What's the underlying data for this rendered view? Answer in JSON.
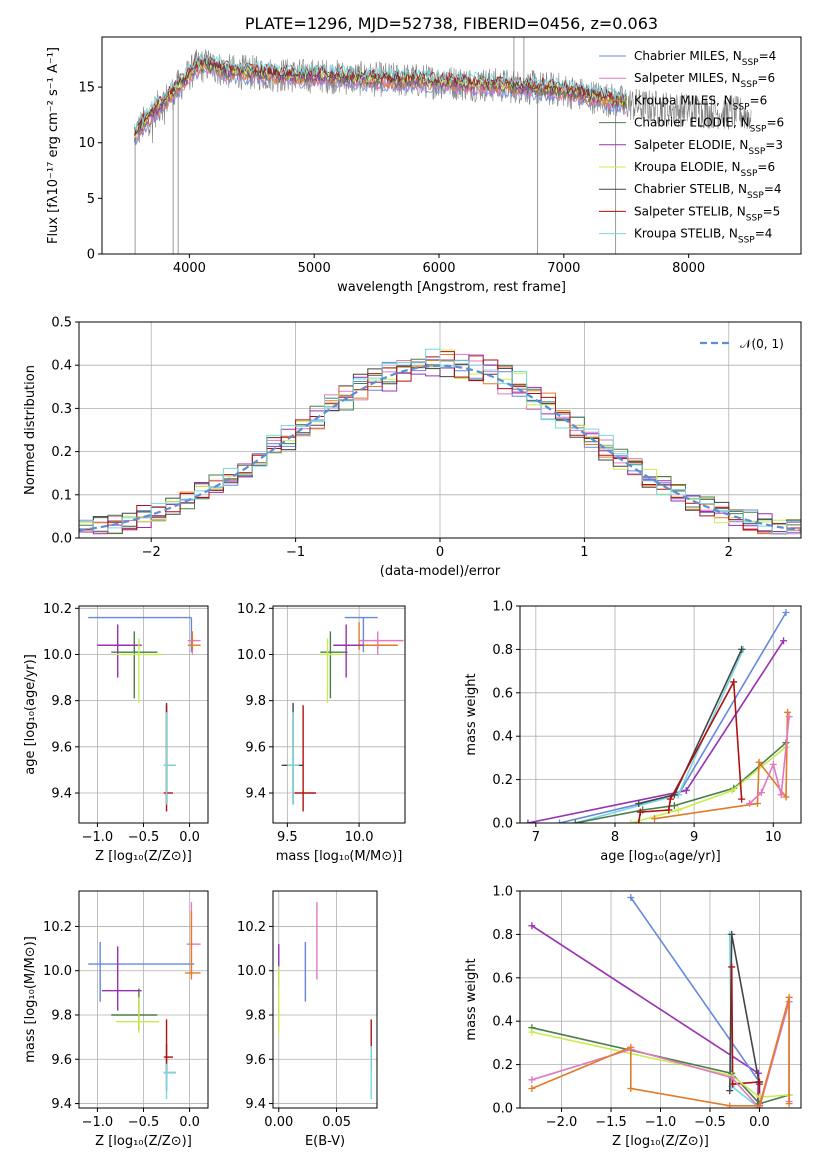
{
  "colors": {
    "Chabrier MILES": "#6688dd",
    "Salpeter MILES": "#e377c2",
    "Kroupa MILES": "#e07b28",
    "Chabrier ELODIE": "#4a7d4a",
    "Salpeter ELODIE": "#9930b0",
    "Kroupa ELODIE": "#c8ec50",
    "Chabrier STELIB": "#444444",
    "Salpeter STELIB": "#b01010",
    "Kroupa STELIB": "#78d8e0",
    "data": "#808080",
    "normal": "#5a8fd8"
  },
  "chart_data": [
    {
      "id": "spectrum",
      "type": "line",
      "title": "PLATE=1296, MJD=52738, FIBERID=0456, z=0.063",
      "xlabel": "wavelength [Angstrom, rest frame]",
      "ylabel": "Flux [fλ10⁻¹⁷ erg cm⁻² s⁻¹ A⁻¹]",
      "xlim": [
        3300,
        8900
      ],
      "ylim": [
        0,
        19.5
      ],
      "xticks": [
        4000,
        5000,
        6000,
        7000,
        8000
      ],
      "yticks": [
        0,
        5,
        10,
        15
      ],
      "grid": false,
      "legend_position": "upper right",
      "legend": [
        {
          "model": "Chabrier MILES",
          "text": "Chabrier MILES, N",
          "nssp": "=4"
        },
        {
          "model": "Salpeter MILES",
          "text": "Salpeter MILES, N",
          "nssp": "=6"
        },
        {
          "model": "Kroupa MILES",
          "text": "Kroupa MILES, N",
          "nssp": "=6"
        },
        {
          "model": "Chabrier ELODIE",
          "text": "Chabrier ELODIE, N",
          "nssp": "=6"
        },
        {
          "model": "Salpeter ELODIE",
          "text": "Salpeter ELODIE, N",
          "nssp": "=3"
        },
        {
          "model": "Kroupa ELODIE",
          "text": "Kroupa ELODIE, N",
          "nssp": "=6"
        },
        {
          "model": "Chabrier STELIB",
          "text": "Chabrier STELIB, N",
          "nssp": "=4"
        },
        {
          "model": "Salpeter STELIB",
          "text": "Salpeter STELIB, N",
          "nssp": "=5"
        },
        {
          "model": "Kroupa STELIB",
          "text": "Kroupa STELIB, N",
          "nssp": "=4"
        }
      ],
      "continuum": [
        [
          3550,
          10.5
        ],
        [
          3650,
          12
        ],
        [
          3750,
          13.2
        ],
        [
          3850,
          14.3
        ],
        [
          3950,
          15.5
        ],
        [
          4050,
          16.8
        ],
        [
          4150,
          17
        ],
        [
          4300,
          16.4
        ],
        [
          4500,
          16.3
        ],
        [
          4700,
          16.1
        ],
        [
          4900,
          16.0
        ],
        [
          5100,
          16.0
        ],
        [
          5300,
          15.8
        ],
        [
          5500,
          15.7
        ],
        [
          5800,
          15.6
        ],
        [
          6100,
          15.4
        ],
        [
          6400,
          15.2
        ],
        [
          6700,
          15.0
        ],
        [
          7000,
          14.7
        ],
        [
          7200,
          14.2
        ],
        [
          7400,
          13.8
        ],
        [
          7600,
          13.3
        ],
        [
          7900,
          13.0
        ],
        [
          8200,
          12.8
        ],
        [
          8500,
          12.5
        ]
      ],
      "model_range": [
        3560,
        7500
      ]
    },
    {
      "id": "residuals",
      "type": "histogram",
      "xlabel": "(data-model)/error",
      "ylabel": "Normed distribution",
      "xlim": [
        -2.5,
        2.5
      ],
      "ylim": [
        0,
        0.5
      ],
      "xticks": [
        -2,
        -1,
        0,
        1,
        2
      ],
      "xtick_labels": [
        "−2",
        "−1",
        "0",
        "1",
        "2"
      ],
      "yticks": [
        0,
        0.1,
        0.2,
        0.3,
        0.4,
        0.5
      ],
      "ytick_labels": [
        "0.0",
        "0.1",
        "0.2",
        "0.3",
        "0.4",
        "0.5"
      ],
      "grid": true,
      "bin_width": 0.1,
      "legend_label": "𝒩(0, 1)",
      "legend_position": "upper right"
    },
    {
      "id": "age-vs-Z",
      "type": "errorbar",
      "xlabel": "Z [log₁₀(Z/Z⊙)]",
      "ylabel": "age  [log₁₀(age/yr)]",
      "xlim": [
        -1.2,
        0.2
      ],
      "ylim": [
        9.27,
        10.21
      ],
      "xticks": [
        -1.0,
        -0.5,
        0.0
      ],
      "xtick_labels": [
        "−1.0",
        "−0.5",
        "0.0"
      ],
      "yticks": [
        9.4,
        9.6,
        9.8,
        10.0,
        10.2
      ],
      "ytick_labels": [
        "9.4",
        "9.6",
        "9.8",
        "10.0",
        "10.2"
      ],
      "grid": true,
      "points": [
        {
          "model": "Chabrier MILES",
          "x": 0.02,
          "y": 10.16,
          "xlo": -1.1,
          "xhi": 0.02,
          "ylo": 10.01,
          "yhi": 10.16
        },
        {
          "model": "Salpeter MILES",
          "x": 0.03,
          "y": 10.06,
          "xlo": -0.02,
          "xhi": 0.12,
          "ylo": 10.0,
          "yhi": 10.1
        },
        {
          "model": "Kroupa MILES",
          "x": 0.03,
          "y": 10.04,
          "xlo": -0.02,
          "xhi": 0.12,
          "ylo": 10.02,
          "yhi": 10.1
        },
        {
          "model": "Chabrier ELODIE",
          "x": -0.6,
          "y": 10.01,
          "xlo": -0.85,
          "xhi": -0.35,
          "ylo": 9.81,
          "yhi": 10.1
        },
        {
          "model": "Salpeter ELODIE",
          "x": -0.78,
          "y": 10.04,
          "xlo": -1.0,
          "xhi": -0.52,
          "ylo": 9.9,
          "yhi": 10.13
        },
        {
          "model": "Kroupa ELODIE",
          "x": -0.55,
          "y": 10.0,
          "xlo": -0.8,
          "xhi": -0.3,
          "ylo": 9.79,
          "yhi": 10.07
        },
        {
          "model": "Chabrier STELIB",
          "x": -0.25,
          "y": 9.52,
          "xlo": -0.28,
          "xhi": -0.15,
          "ylo": 9.35,
          "yhi": 9.79
        },
        {
          "model": "Salpeter STELIB",
          "x": -0.25,
          "y": 9.4,
          "xlo": -0.28,
          "xhi": -0.18,
          "ylo": 9.32,
          "yhi": 9.78
        },
        {
          "model": "Kroupa STELIB",
          "x": -0.25,
          "y": 9.52,
          "xlo": -0.28,
          "xhi": -0.15,
          "ylo": 9.35,
          "yhi": 9.75
        }
      ]
    },
    {
      "id": "age-vs-mass",
      "type": "errorbar",
      "xlabel": "mass [log₁₀(M/M⊙)]",
      "ylabel": "",
      "xlim": [
        9.4,
        10.32
      ],
      "ylim": [
        9.27,
        10.21
      ],
      "xticks": [
        9.5,
        10.0
      ],
      "xtick_labels": [
        "9.5",
        "10.0"
      ],
      "yticks": [
        9.4,
        9.6,
        9.8,
        10.0,
        10.2
      ],
      "ytick_labels": [
        "9.4",
        "9.6",
        "9.8",
        "10.0",
        "10.2"
      ],
      "grid": true,
      "points": [
        {
          "model": "Chabrier MILES",
          "x": 10.03,
          "y": 10.16,
          "xlo": 9.9,
          "xhi": 10.13,
          "ylo": 10.01,
          "yhi": 10.16
        },
        {
          "model": "Salpeter MILES",
          "x": 10.13,
          "y": 10.06,
          "xlo": 10.0,
          "xhi": 10.31,
          "ylo": 10.0,
          "yhi": 10.1
        },
        {
          "model": "Kroupa MILES",
          "x": 10.0,
          "y": 10.04,
          "xlo": 9.96,
          "xhi": 10.27,
          "ylo": 10.02,
          "yhi": 10.14
        },
        {
          "model": "Chabrier ELODIE",
          "x": 9.8,
          "y": 10.01,
          "xlo": 9.73,
          "xhi": 9.92,
          "ylo": 9.81,
          "yhi": 10.1
        },
        {
          "model": "Salpeter ELODIE",
          "x": 9.91,
          "y": 10.04,
          "xlo": 9.82,
          "xhi": 10.03,
          "ylo": 9.9,
          "yhi": 10.13
        },
        {
          "model": "Kroupa ELODIE",
          "x": 9.78,
          "y": 10.0,
          "xlo": 9.72,
          "xhi": 9.88,
          "ylo": 9.79,
          "yhi": 10.07
        },
        {
          "model": "Chabrier STELIB",
          "x": 9.54,
          "y": 9.52,
          "xlo": 9.46,
          "xhi": 9.61,
          "ylo": 9.35,
          "yhi": 9.79
        },
        {
          "model": "Salpeter STELIB",
          "x": 9.61,
          "y": 9.4,
          "xlo": 9.55,
          "xhi": 9.7,
          "ylo": 9.32,
          "yhi": 9.78
        },
        {
          "model": "Kroupa STELIB",
          "x": 9.54,
          "y": 9.52,
          "xlo": 9.5,
          "xhi": 9.58,
          "ylo": 9.35,
          "yhi": 9.75
        }
      ]
    },
    {
      "id": "mass-weight-vs-age",
      "type": "line",
      "xlabel": "age  [log₁₀(age/yr)]",
      "ylabel": "mass weight",
      "xlim": [
        6.8,
        10.35
      ],
      "ylim": [
        0,
        1.0
      ],
      "xticks": [
        7,
        8,
        9,
        10
      ],
      "xtick_labels": [
        "7",
        "8",
        "9",
        "10"
      ],
      "yticks": [
        0,
        0.2,
        0.4,
        0.6,
        0.8,
        1.0
      ],
      "ytick_labels": [
        "0.0",
        "0.2",
        "0.4",
        "0.6",
        "0.8",
        "1.0"
      ],
      "grid": true,
      "series": [
        {
          "model": "Salpeter ELODIE",
          "x": [
            6.9,
            8.9,
            10.13
          ],
          "y": [
            0.0,
            0.15,
            0.84
          ]
        },
        {
          "model": "Chabrier MILES",
          "x": [
            7.3,
            8.8,
            10.16
          ],
          "y": [
            0.0,
            0.13,
            0.97
          ]
        },
        {
          "model": "Kroupa STELIB",
          "x": [
            7.5,
            8.8,
            9.62
          ],
          "y": [
            0.0,
            0.13,
            0.8
          ]
        },
        {
          "model": "Chabrier STELIB",
          "x": [
            8.3,
            8.75,
            9.6
          ],
          "y": [
            0.09,
            0.13,
            0.8
          ]
        },
        {
          "model": "Chabrier ELODIE",
          "x": [
            7.5,
            8.35,
            8.75,
            9.5,
            10.16
          ],
          "y": [
            0.0,
            0.06,
            0.08,
            0.16,
            0.37
          ]
        },
        {
          "model": "Kroupa ELODIE",
          "x": [
            8.2,
            8.8,
            9.48,
            10.16
          ],
          "y": [
            0.0,
            0.06,
            0.15,
            0.35
          ]
        },
        {
          "model": "Salpeter STELIB",
          "x": [
            8.3,
            8.32,
            8.68,
            8.7,
            9.5,
            9.6
          ],
          "y": [
            0.0,
            0.05,
            0.06,
            0.11,
            0.65,
            0.11
          ]
        },
        {
          "model": "Kroupa MILES",
          "x": [
            8.5,
            9.8,
            9.82,
            10.16,
            10.18
          ],
          "y": [
            0.02,
            0.09,
            0.28,
            0.12,
            0.51
          ]
        },
        {
          "model": "Salpeter MILES",
          "x": [
            9.7,
            9.85,
            10.0,
            10.1,
            10.2
          ],
          "y": [
            0.09,
            0.14,
            0.27,
            0.13,
            0.49
          ]
        }
      ]
    },
    {
      "id": "mass-vs-Z",
      "type": "errorbar",
      "xlabel": "Z [log₁₀(Z/Z⊙)]",
      "ylabel": "mass [log₁₀(M/M⊙)]",
      "xlim": [
        -1.2,
        0.2
      ],
      "ylim": [
        9.38,
        10.36
      ],
      "xticks": [
        -1.0,
        -0.5,
        0.0
      ],
      "xtick_labels": [
        "−1.0",
        "−0.5",
        "0.0"
      ],
      "yticks": [
        9.4,
        9.6,
        9.8,
        10.0,
        10.2
      ],
      "ytick_labels": [
        "9.4",
        "9.6",
        "9.8",
        "10.0",
        "10.2"
      ],
      "grid": true,
      "points": [
        {
          "model": "Chabrier MILES",
          "x": -0.97,
          "y": 10.03,
          "xlo": -1.1,
          "xhi": 0.05,
          "ylo": 9.86,
          "yhi": 10.13
        },
        {
          "model": "Salpeter MILES",
          "x": 0.02,
          "y": 10.12,
          "xlo": -0.03,
          "xhi": 0.12,
          "ylo": 9.99,
          "yhi": 10.31
        },
        {
          "model": "Kroupa MILES",
          "x": 0.02,
          "y": 9.99,
          "xlo": -0.05,
          "xhi": 0.12,
          "ylo": 9.96,
          "yhi": 10.27
        },
        {
          "model": "Chabrier ELODIE",
          "x": -0.55,
          "y": 9.8,
          "xlo": -0.85,
          "xhi": -0.35,
          "ylo": 9.73,
          "yhi": 9.92
        },
        {
          "model": "Salpeter ELODIE",
          "x": -0.78,
          "y": 9.91,
          "xlo": -0.95,
          "xhi": -0.52,
          "ylo": 9.82,
          "yhi": 10.11
        },
        {
          "model": "Kroupa ELODIE",
          "x": -0.55,
          "y": 9.77,
          "xlo": -0.8,
          "xhi": -0.33,
          "ylo": 9.72,
          "yhi": 9.88
        },
        {
          "model": "Chabrier STELIB",
          "x": -0.25,
          "y": 9.54,
          "xlo": -0.28,
          "xhi": -0.15,
          "ylo": 9.46,
          "yhi": 9.67
        },
        {
          "model": "Salpeter STELIB",
          "x": -0.25,
          "y": 9.61,
          "xlo": -0.28,
          "xhi": -0.18,
          "ylo": 9.55,
          "yhi": 9.78
        },
        {
          "model": "Kroupa STELIB",
          "x": -0.25,
          "y": 9.54,
          "xlo": -0.28,
          "xhi": -0.15,
          "ylo": 9.42,
          "yhi": 9.58
        }
      ]
    },
    {
      "id": "mass-vs-EBV",
      "type": "errorbar",
      "xlabel": "E(B-V)",
      "ylabel": "",
      "xlim": [
        -0.005,
        0.085
      ],
      "ylim": [
        9.38,
        10.36
      ],
      "xticks": [
        0.0,
        0.05
      ],
      "xtick_labels": [
        "0.00",
        "0.05"
      ],
      "yticks": [
        9.4,
        9.6,
        9.8,
        10.0,
        10.2
      ],
      "ytick_labels": [
        "9.4",
        "9.6",
        "9.8",
        "10.0",
        "10.2"
      ],
      "grid": true,
      "points": [
        {
          "model": "Salpeter ELODIE",
          "x": 0.0,
          "y": 10.03,
          "xlo": 0.0,
          "xhi": 0.0,
          "ylo": 9.93,
          "yhi": 10.12
        },
        {
          "model": "Kroupa ELODIE",
          "x": 0.0,
          "y": 9.85,
          "xlo": 0.0,
          "xhi": 0.0,
          "ylo": 9.72,
          "yhi": 10.02
        },
        {
          "model": "Chabrier MILES",
          "x": 0.023,
          "y": 9.99,
          "xlo": 0.023,
          "xhi": 0.023,
          "ylo": 9.86,
          "yhi": 10.13
        },
        {
          "model": "Salpeter MILES",
          "x": 0.033,
          "y": 10.13,
          "xlo": 0.033,
          "xhi": 0.033,
          "ylo": 9.96,
          "yhi": 10.31
        },
        {
          "model": "Salpeter STELIB",
          "x": 0.08,
          "y": 9.66,
          "xlo": 0.08,
          "xhi": 0.08,
          "ylo": 9.55,
          "yhi": 9.78
        },
        {
          "model": "Kroupa STELIB",
          "x": 0.08,
          "y": 9.53,
          "xlo": 0.08,
          "xhi": 0.08,
          "ylo": 9.42,
          "yhi": 9.66
        }
      ]
    },
    {
      "id": "mass-weight-vs-Z",
      "type": "line",
      "xlabel": "Z [log₁₀(Z/Z⊙)]",
      "ylabel": "mass weight",
      "xlim": [
        -2.42,
        0.42
      ],
      "ylim": [
        0,
        1.0
      ],
      "xticks": [
        -2.0,
        -1.5,
        -1.0,
        -0.5,
        0.0
      ],
      "xtick_labels": [
        "−2.0",
        "−1.5",
        "−1.0",
        "−0.5",
        "0.0"
      ],
      "yticks": [
        0,
        0.2,
        0.4,
        0.6,
        0.8,
        1.0
      ],
      "ytick_labels": [
        "0.0",
        "0.2",
        "0.4",
        "0.6",
        "0.8",
        "1.0"
      ],
      "grid": true,
      "series": [
        {
          "model": "Salpeter ELODIE",
          "x": [
            -2.3,
            -0.01,
            -0.02
          ],
          "y": [
            0.84,
            0.16,
            0.0
          ]
        },
        {
          "model": "Chabrier MILES",
          "x": [
            -1.3,
            0.0,
            0.0
          ],
          "y": [
            0.97,
            0.12,
            0.0
          ]
        },
        {
          "model": "Kroupa STELIB",
          "x": [
            -0.3,
            -0.28,
            0.0
          ],
          "y": [
            0.8,
            0.1,
            0.0
          ]
        },
        {
          "model": "Chabrier STELIB",
          "x": [
            -0.3,
            -0.28,
            0.0
          ],
          "y": [
            0.08,
            0.8,
            0.11
          ]
        },
        {
          "model": "Salpeter STELIB",
          "x": [
            -0.28,
            -0.27,
            0.0,
            0.0
          ],
          "y": [
            0.65,
            0.11,
            0.12,
            0.01
          ]
        },
        {
          "model": "Chabrier ELODIE",
          "x": [
            -2.3,
            -0.28,
            0.0,
            0.3
          ],
          "y": [
            0.37,
            0.16,
            0.02,
            0.06
          ]
        },
        {
          "model": "Kroupa ELODIE",
          "x": [
            -2.3,
            -0.28,
            0.0,
            0.3
          ],
          "y": [
            0.35,
            0.15,
            0.05,
            0.06
          ]
        },
        {
          "model": "Salpeter MILES",
          "x": [
            -2.3,
            -1.3,
            -0.28,
            0.0,
            0.3,
            0.3
          ],
          "y": [
            0.13,
            0.27,
            0.14,
            0.0,
            0.49,
            0.03
          ]
        },
        {
          "model": "Kroupa MILES",
          "x": [
            -2.3,
            -1.3,
            -1.3,
            -0.3,
            0.0,
            0.3,
            0.3
          ],
          "y": [
            0.09,
            0.28,
            0.09,
            0.01,
            0.01,
            0.51,
            0.02
          ]
        }
      ]
    }
  ]
}
